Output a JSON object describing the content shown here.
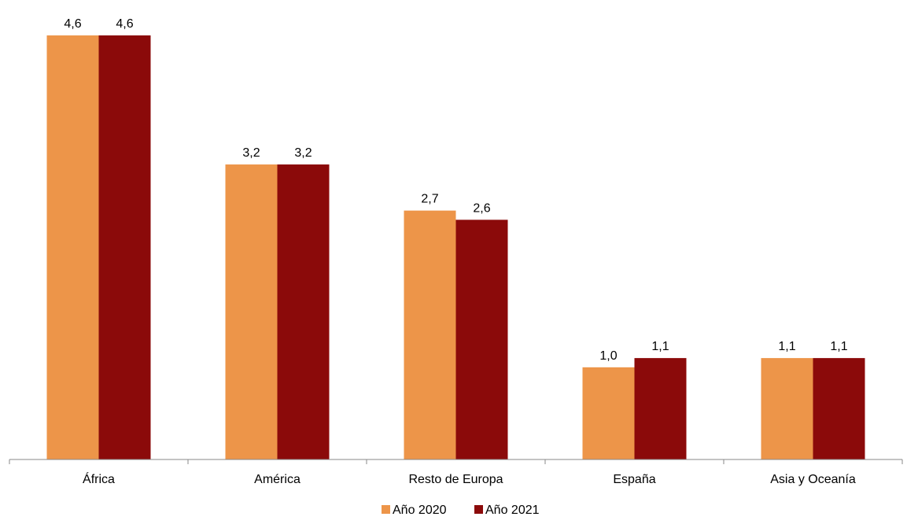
{
  "chart_data": {
    "type": "bar",
    "title": "",
    "xlabel": "",
    "ylabel": "",
    "ylim": [
      0,
      4.6
    ],
    "grid": false,
    "legend_position": "bottom",
    "categories": [
      "África",
      "América",
      "Resto de Europa",
      "España",
      "Asia y Oceanía"
    ],
    "series": [
      {
        "name": "Año 2020",
        "color": "#ED9549",
        "values": [
          4.6,
          3.2,
          2.7,
          1.0,
          1.1
        ],
        "labels": [
          "4,6",
          "3,2",
          "2,7",
          "1,0",
          "1,1"
        ]
      },
      {
        "name": "Año 2021",
        "color": "#8B0A0A",
        "values": [
          4.6,
          3.2,
          2.6,
          1.1,
          1.1
        ],
        "labels": [
          "4,6",
          "3,2",
          "2,6",
          "1,1",
          "1,1"
        ]
      }
    ]
  }
}
